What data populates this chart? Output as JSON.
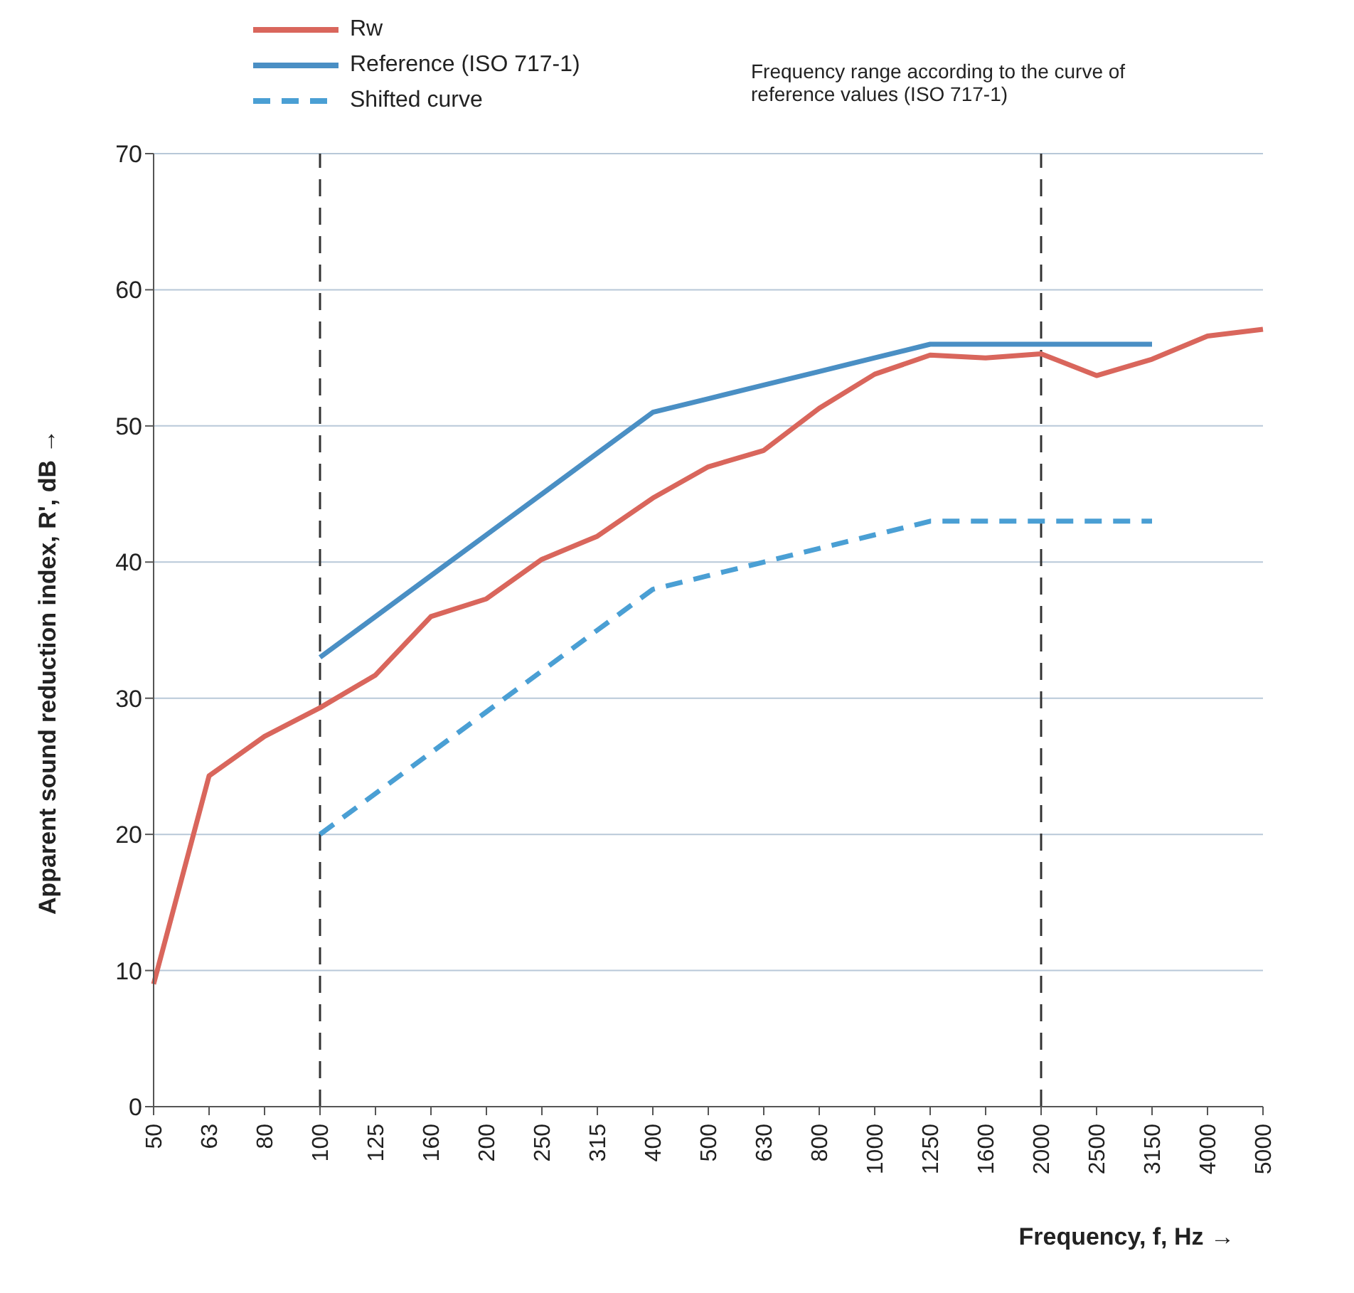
{
  "chart_data": {
    "type": "line",
    "xlabel": "Frequency, f, Hz →",
    "ylabel": "Apparent sound reduction index, R', dB →",
    "categories": [
      "50",
      "63",
      "80",
      "100",
      "125",
      "160",
      "200",
      "250",
      "315",
      "400",
      "500",
      "630",
      "800",
      "1000",
      "1250",
      "1600",
      "2000",
      "2500",
      "3150",
      "4000",
      "5000"
    ],
    "series": [
      {
        "name": "Rw",
        "color": "#d9665c",
        "line_style": "solid",
        "values": [
          9,
          24.3,
          27.2,
          29.3,
          31.7,
          36,
          37.3,
          40.2,
          41.9,
          44.7,
          47,
          48.2,
          51.3,
          53.8,
          55.2,
          55,
          55.3,
          53.7,
          54.9,
          56.6,
          57.1
        ]
      },
      {
        "name": "Reference (ISO 717-1)",
        "color": "#4a8fc4",
        "line_style": "solid",
        "values": [
          null,
          null,
          null,
          33,
          36,
          39,
          42,
          45,
          48,
          51,
          52,
          53,
          54,
          55,
          56,
          56,
          56,
          56,
          56,
          null,
          null
        ]
      },
      {
        "name": "Shifted curve",
        "color": "#4a9fd4",
        "line_style": "dashed",
        "values": [
          null,
          null,
          null,
          20,
          23,
          26,
          29,
          32,
          35,
          38,
          39,
          40,
          41,
          42,
          43,
          43,
          43,
          43,
          43,
          null,
          null
        ]
      }
    ],
    "ylim": [
      0,
      70
    ],
    "yticks": [
      0,
      10,
      20,
      30,
      40,
      50,
      60,
      70
    ],
    "grid": "y",
    "legend": "top left",
    "marker": "none",
    "ref_lines": [
      {
        "axis": "x",
        "value": "100",
        "color": "#333333",
        "line_style": "dashed"
      },
      {
        "axis": "x",
        "value": "2000",
        "color": "#333333",
        "line_style": "dashed"
      }
    ],
    "annotations": [
      "Frequency range according to the curve of reference values (ISO 717-1)"
    ]
  }
}
